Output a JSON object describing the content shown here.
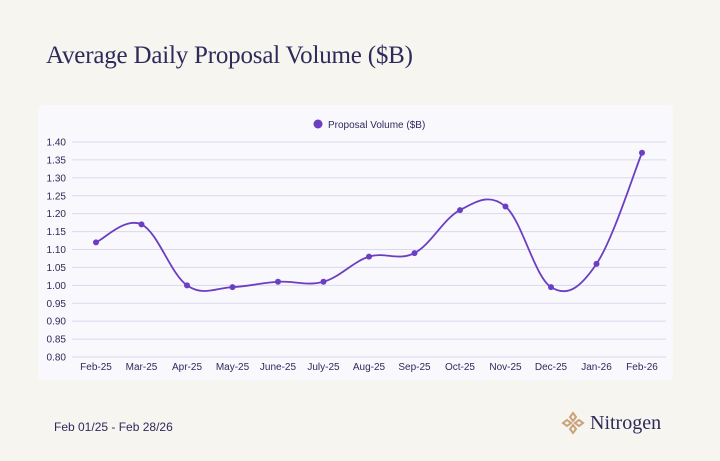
{
  "page": {
    "title": "Average Daily Proposal Volume ($B)",
    "date_range": "Feb 01/25 - Feb 28/26",
    "brand_name": "Nitrogen"
  },
  "colors": {
    "series": "#6a3fc1",
    "grid": "#dcd8ec",
    "text": "#2e2a5a",
    "background": "#f6f5f0",
    "plot_bg": "#f9f8fd"
  },
  "chart_data": {
    "type": "line",
    "categories": [
      "Feb-25",
      "Mar-25",
      "Apr-25",
      "May-25",
      "June-25",
      "July-25",
      "Aug-25",
      "Sep-25",
      "Oct-25",
      "Nov-25",
      "Dec-25",
      "Jan-26",
      "Feb-26"
    ],
    "series": [
      {
        "name": "Proposal Volume ($B)",
        "values": [
          1.12,
          1.17,
          1.0,
          0.995,
          1.01,
          1.01,
          1.08,
          1.09,
          1.21,
          1.22,
          0.995,
          1.06,
          1.37
        ]
      }
    ],
    "ylim": [
      0.8,
      1.4
    ],
    "yticks": [
      "0.80",
      "0.85",
      "0.90",
      "0.95",
      "1.00",
      "1.05",
      "1.10",
      "1.15",
      "1.20",
      "1.25",
      "1.30",
      "1.35",
      "1.40"
    ],
    "grid": true,
    "legend": "top-center",
    "smooth": true
  }
}
